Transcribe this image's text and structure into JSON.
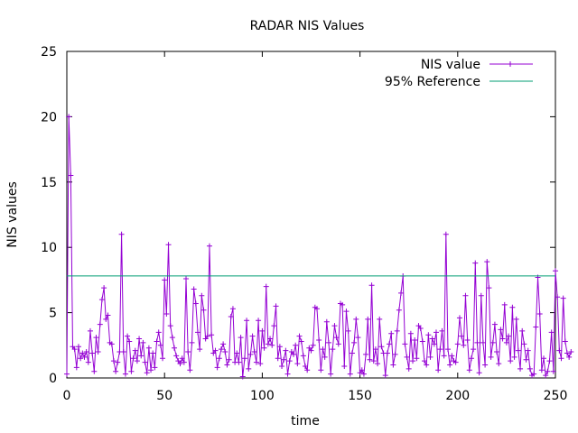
{
  "chart_data": {
    "type": "line",
    "title": "RADAR NIS Values",
    "xlabel": "time",
    "ylabel": "NIS values",
    "xlim": [
      0,
      250
    ],
    "ylim": [
      0,
      25
    ],
    "xticks": [
      0,
      50,
      100,
      150,
      200,
      250
    ],
    "yticks": [
      0,
      5,
      10,
      15,
      20,
      25
    ],
    "grid": false,
    "legend_position": "top-right",
    "series": [
      {
        "name": "NIS value",
        "color": "#9400d3",
        "marker": "plus",
        "x_start": 0,
        "x_step": 1,
        "values": [
          0.3,
          20.0,
          15.5,
          2.4,
          2.2,
          0.8,
          2.4,
          1.5,
          1.9,
          1.6,
          2.0,
          1.2,
          3.6,
          1.9,
          0.5,
          3.1,
          2.0,
          4.1,
          6.0,
          6.9,
          4.5,
          4.8,
          2.7,
          2.6,
          1.3,
          0.5,
          1.2,
          2.0,
          11.0,
          2.0,
          0.3,
          3.2,
          2.8,
          0.5,
          1.5,
          2.1,
          1.3,
          3.0,
          1.7,
          2.7,
          1.2,
          0.4,
          2.3,
          0.6,
          1.9,
          0.8,
          2.8,
          3.5,
          2.5,
          1.5,
          7.5,
          4.9,
          10.2,
          4.0,
          3.1,
          2.3,
          1.7,
          1.3,
          1.1,
          1.5,
          1.2,
          7.6,
          2.0,
          0.6,
          2.7,
          6.8,
          5.7,
          3.5,
          2.2,
          6.3,
          5.2,
          3.0,
          3.2,
          10.1,
          3.3,
          1.9,
          2.1,
          0.8,
          1.5,
          2.2,
          2.6,
          2.0,
          1.0,
          1.4,
          4.7,
          5.3,
          1.2,
          1.9,
          1.2,
          3.1,
          0.1,
          1.5,
          4.4,
          0.7,
          1.8,
          3.2,
          2.0,
          1.2,
          4.4,
          1.1,
          3.6,
          2.3,
          7.0,
          2.6,
          3.0,
          2.5,
          4.0,
          5.5,
          1.5,
          2.4,
          0.9,
          1.4,
          2.1,
          0.3,
          1.3,
          2.0,
          1.8,
          2.5,
          1.1,
          3.2,
          2.8,
          1.7,
          0.9,
          0.6,
          2.3,
          2.1,
          2.5,
          5.4,
          5.3,
          2.9,
          0.6,
          2.2,
          1.6,
          4.3,
          2.7,
          0.3,
          2.2,
          4.0,
          3.1,
          2.6,
          5.7,
          5.6,
          0.9,
          5.1,
          3.6,
          0.3,
          1.9,
          2.7,
          4.5,
          3.1,
          0.4,
          0.6,
          0.3,
          1.8,
          4.5,
          1.4,
          7.1,
          1.3,
          2.2,
          1.1,
          4.5,
          2.4,
          1.9,
          0.2,
          1.9,
          2.6,
          3.4,
          1.0,
          1.8,
          3.6,
          5.2,
          6.5,
          7.8,
          2.6,
          1.6,
          0.7,
          3.4,
          1.3,
          2.9,
          1.5,
          4.0,
          3.8,
          2.8,
          1.3,
          1.0,
          3.3,
          1.6,
          3.0,
          2.6,
          3.5,
          0.6,
          2.2,
          3.6,
          1.7,
          11.0,
          2.2,
          1.0,
          1.7,
          1.3,
          1.2,
          2.6,
          4.6,
          3.2,
          2.5,
          6.3,
          2.9,
          0.6,
          1.5,
          2.2,
          8.8,
          2.7,
          0.4,
          6.3,
          2.7,
          1.0,
          8.9,
          6.9,
          1.6,
          2.7,
          4.1,
          2.0,
          1.1,
          3.7,
          3.0,
          5.6,
          2.7,
          3.2,
          1.3,
          5.4,
          1.6,
          4.5,
          2.1,
          0.7,
          3.6,
          2.6,
          1.4,
          2.1,
          0.7,
          0.2,
          0.3,
          3.9,
          7.7,
          4.9,
          0.6,
          1.5,
          0.2,
          0.5,
          1.3,
          3.5,
          0.5,
          8.2,
          6.2,
          2.1,
          1.5,
          6.1,
          2.8,
          1.9,
          1.6,
          2.0
        ]
      },
      {
        "name": "95% Reference",
        "color": "#009e73",
        "marker": "none",
        "x": [
          0,
          250
        ],
        "values": [
          7.815,
          7.815
        ]
      }
    ]
  }
}
